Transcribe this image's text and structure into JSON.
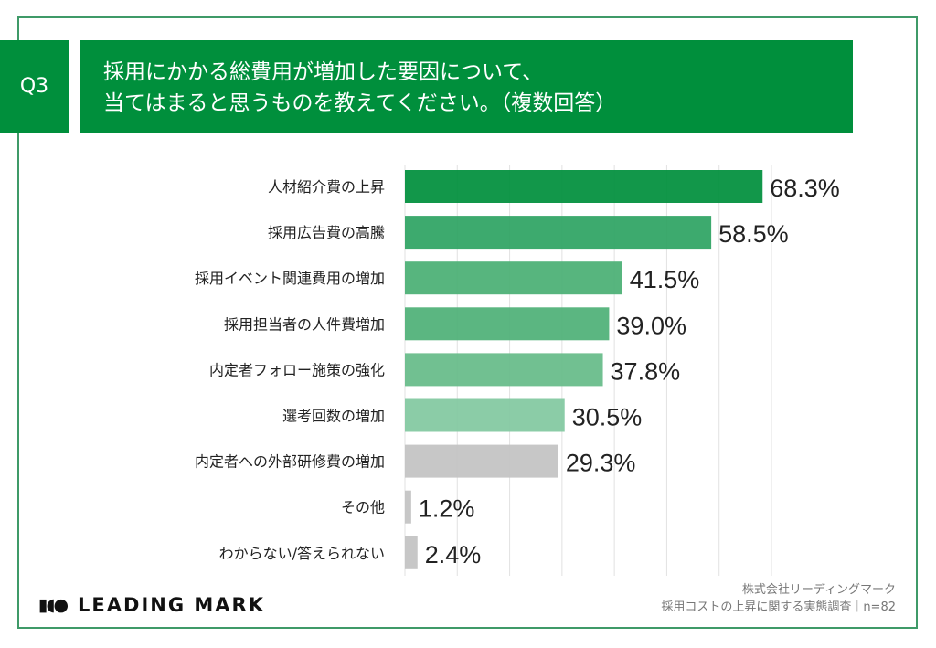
{
  "question": {
    "number": "Q3",
    "line1": "採用にかかる総費用が増加した要因について、",
    "line2": "当てはまると思うものを教えてください。（複数回答）"
  },
  "chart_data": {
    "type": "bar",
    "orientation": "horizontal",
    "categories": [
      "人材紹介費の上昇",
      "採用広告費の高騰",
      "採用イベント関連費用の増加",
      "採用担当者の人件費増加",
      "内定者フォロー施策の強化",
      "選考回数の増加",
      "内定者への外部研修費の増加",
      "その他",
      "わからない/答えられない"
    ],
    "values": [
      68.3,
      58.5,
      41.5,
      39.0,
      37.8,
      30.5,
      29.3,
      1.2,
      2.4
    ],
    "labels": [
      "68.3%",
      "58.5%",
      "41.5%",
      "39.0%",
      "37.8%",
      "30.5%",
      "29.3%",
      "1.2%",
      "2.4%"
    ],
    "colors": [
      "#008f3c",
      "#2ea463",
      "#4aaf74",
      "#4fb077",
      "#66bb89",
      "#82c8a0",
      "#c3c3c3",
      "#c3c3c3",
      "#c3c3c3"
    ],
    "xlim": [
      0,
      70
    ],
    "grid": true,
    "unit": "%"
  },
  "footer": {
    "logo": "LEADING MARK",
    "company": "株式会社リーディングマーク",
    "survey": "採用コストの上昇に関する実態調査｜n=82"
  }
}
